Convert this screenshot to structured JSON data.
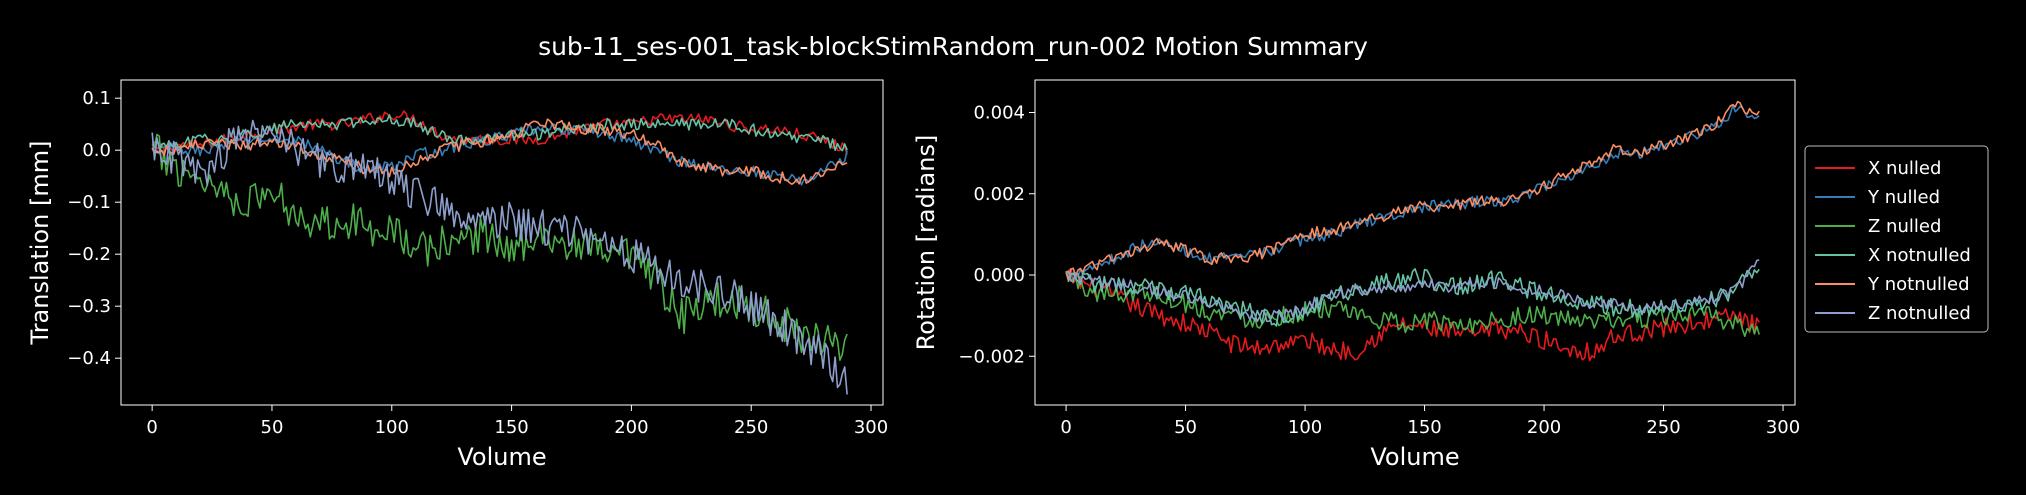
{
  "title": "sub-11_ses-001_task-blockStimRandom_run-002 Motion Summary",
  "legend": {
    "placement": "right, outside plots",
    "entries": [
      {
        "label": "X nulled",
        "color": "#e41a1c"
      },
      {
        "label": "Y nulled",
        "color": "#377eb8"
      },
      {
        "label": "Z nulled",
        "color": "#4daf4a"
      },
      {
        "label": "X notnulled",
        "color": "#66c2a5"
      },
      {
        "label": "Y notnulled",
        "color": "#fc8d62"
      },
      {
        "label": "Z notnulled",
        "color": "#8da0cb"
      }
    ]
  },
  "chart_data": [
    {
      "type": "line",
      "xlabel": "Volume",
      "ylabel": "Translation [mm]",
      "xlim": [
        -13,
        305
      ],
      "ylim": [
        -0.49,
        0.135
      ],
      "xticks": [
        0,
        50,
        100,
        150,
        200,
        250,
        300
      ],
      "yticks": [
        0.1,
        0.0,
        -0.1,
        -0.2,
        -0.3,
        -0.4
      ],
      "ytick_labels": [
        "0.1",
        "0.0",
        "−0.1",
        "−0.2",
        "−0.3",
        "−0.4"
      ],
      "grid": false,
      "x_range": [
        0,
        290
      ],
      "series": [
        {
          "name": "X nulled",
          "color": "#e41a1c",
          "x": [
            0,
            10,
            20,
            30,
            40,
            50,
            60,
            70,
            80,
            90,
            100,
            110,
            120,
            130,
            140,
            150,
            160,
            170,
            180,
            190,
            200,
            210,
            220,
            230,
            240,
            250,
            260,
            270,
            280,
            290
          ],
          "y": [
            0.0,
            0.01,
            0.01,
            0.02,
            0.03,
            0.04,
            0.045,
            0.05,
            0.05,
            0.06,
            0.07,
            0.06,
            0.03,
            0.02,
            0.02,
            0.02,
            0.02,
            0.03,
            0.04,
            0.05,
            0.05,
            0.06,
            0.06,
            0.06,
            0.05,
            0.04,
            0.04,
            0.03,
            0.02,
            0.0
          ]
        },
        {
          "name": "Y nulled",
          "color": "#377eb8",
          "x": [
            0,
            10,
            20,
            30,
            40,
            50,
            60,
            70,
            80,
            90,
            100,
            110,
            120,
            130,
            140,
            150,
            160,
            170,
            180,
            190,
            200,
            210,
            220,
            230,
            240,
            250,
            260,
            270,
            280,
            290
          ],
          "y": [
            0.01,
            0.0,
            0.0,
            0.01,
            0.02,
            0.02,
            0.02,
            0.0,
            -0.02,
            -0.04,
            -0.03,
            -0.01,
            0.0,
            0.01,
            0.02,
            0.03,
            0.04,
            0.04,
            0.04,
            0.03,
            0.02,
            0.0,
            -0.02,
            -0.03,
            -0.04,
            -0.04,
            -0.05,
            -0.06,
            -0.04,
            -0.01
          ]
        },
        {
          "name": "Z nulled",
          "color": "#4daf4a",
          "x": [
            0,
            10,
            20,
            30,
            40,
            50,
            60,
            70,
            80,
            90,
            100,
            110,
            120,
            130,
            140,
            150,
            160,
            170,
            180,
            190,
            200,
            210,
            220,
            230,
            240,
            250,
            260,
            270,
            280,
            290
          ],
          "y": [
            0.0,
            -0.03,
            -0.05,
            -0.08,
            -0.1,
            -0.08,
            -0.12,
            -0.14,
            -0.13,
            -0.15,
            -0.14,
            -0.2,
            -0.18,
            -0.17,
            -0.16,
            -0.2,
            -0.15,
            -0.18,
            -0.19,
            -0.2,
            -0.21,
            -0.25,
            -0.32,
            -0.3,
            -0.28,
            -0.3,
            -0.33,
            -0.35,
            -0.36,
            -0.37
          ]
        },
        {
          "name": "X notnulled",
          "color": "#66c2a5",
          "x": [
            0,
            10,
            20,
            30,
            40,
            50,
            60,
            70,
            80,
            90,
            100,
            110,
            120,
            130,
            140,
            150,
            160,
            170,
            180,
            190,
            200,
            210,
            220,
            230,
            240,
            250,
            260,
            270,
            280,
            290
          ],
          "y": [
            0.0,
            0.01,
            0.02,
            0.02,
            0.03,
            0.04,
            0.05,
            0.05,
            0.05,
            0.06,
            0.06,
            0.05,
            0.03,
            0.02,
            0.02,
            0.03,
            0.03,
            0.04,
            0.04,
            0.05,
            0.05,
            0.05,
            0.05,
            0.05,
            0.05,
            0.04,
            0.03,
            0.02,
            0.02,
            0.0
          ]
        },
        {
          "name": "Y notnulled",
          "color": "#fc8d62",
          "x": [
            0,
            10,
            20,
            30,
            40,
            50,
            60,
            70,
            80,
            90,
            100,
            110,
            120,
            130,
            140,
            150,
            160,
            170,
            180,
            190,
            200,
            210,
            220,
            230,
            240,
            250,
            260,
            270,
            280,
            290
          ],
          "y": [
            0.0,
            0.0,
            0.01,
            0.01,
            0.01,
            0.02,
            0.01,
            -0.01,
            -0.02,
            -0.04,
            -0.04,
            -0.02,
            0.0,
            0.01,
            0.02,
            0.03,
            0.05,
            0.05,
            0.04,
            0.04,
            0.03,
            0.01,
            -0.02,
            -0.03,
            -0.04,
            -0.04,
            -0.05,
            -0.06,
            -0.05,
            -0.02
          ]
        },
        {
          "name": "Z notnulled",
          "color": "#8da0cb",
          "x": [
            0,
            10,
            20,
            30,
            40,
            50,
            60,
            70,
            80,
            90,
            100,
            110,
            120,
            130,
            140,
            150,
            160,
            170,
            180,
            190,
            200,
            210,
            220,
            230,
            240,
            250,
            260,
            270,
            280,
            290
          ],
          "y": [
            0.02,
            -0.02,
            -0.05,
            0.0,
            0.02,
            0.05,
            0.0,
            -0.02,
            -0.03,
            -0.04,
            -0.06,
            -0.08,
            -0.1,
            -0.12,
            -0.14,
            -0.13,
            -0.15,
            -0.15,
            -0.16,
            -0.18,
            -0.2,
            -0.22,
            -0.25,
            -0.27,
            -0.28,
            -0.3,
            -0.33,
            -0.36,
            -0.4,
            -0.44
          ]
        }
      ]
    },
    {
      "type": "line",
      "xlabel": "Volume",
      "ylabel": "Rotation [radians]",
      "xlim": [
        -13,
        305
      ],
      "ylim": [
        -0.0032,
        0.0048
      ],
      "xticks": [
        0,
        50,
        100,
        150,
        200,
        250,
        300
      ],
      "yticks": [
        0.004,
        0.002,
        0.0,
        -0.002
      ],
      "ytick_labels": [
        "0.004",
        "0.002",
        "0.000",
        "−0.002"
      ],
      "grid": false,
      "x_range": [
        0,
        290
      ],
      "series": [
        {
          "name": "X nulled",
          "color": "#e41a1c",
          "x": [
            0,
            10,
            20,
            30,
            40,
            50,
            60,
            70,
            80,
            90,
            100,
            110,
            120,
            130,
            140,
            150,
            160,
            170,
            180,
            190,
            200,
            210,
            220,
            230,
            240,
            250,
            260,
            270,
            280,
            290
          ],
          "y": [
            0.0,
            -0.0003,
            -0.0005,
            -0.0008,
            -0.001,
            -0.0012,
            -0.0014,
            -0.0017,
            -0.0018,
            -0.0017,
            -0.0016,
            -0.0018,
            -0.0019,
            -0.0015,
            -0.0012,
            -0.0013,
            -0.0014,
            -0.0015,
            -0.0013,
            -0.0014,
            -0.0016,
            -0.0018,
            -0.0019,
            -0.0015,
            -0.0014,
            -0.0013,
            -0.0012,
            -0.0011,
            -0.001,
            -0.0013
          ]
        },
        {
          "name": "Y nulled",
          "color": "#377eb8",
          "x": [
            0,
            10,
            20,
            30,
            40,
            50,
            60,
            70,
            80,
            90,
            100,
            110,
            120,
            130,
            140,
            150,
            160,
            170,
            180,
            190,
            200,
            210,
            220,
            230,
            240,
            250,
            260,
            270,
            280,
            290
          ],
          "y": [
            0.0,
            0.0002,
            0.0004,
            0.0007,
            0.0008,
            0.0006,
            0.0004,
            0.0004,
            0.0005,
            0.0007,
            0.0009,
            0.001,
            0.0012,
            0.0014,
            0.0015,
            0.0017,
            0.0017,
            0.0018,
            0.0018,
            0.0019,
            0.0022,
            0.0024,
            0.0027,
            0.003,
            0.003,
            0.0032,
            0.0034,
            0.0036,
            0.0041,
            0.0039
          ]
        },
        {
          "name": "Z nulled",
          "color": "#4daf4a",
          "x": [
            0,
            10,
            20,
            30,
            40,
            50,
            60,
            70,
            80,
            90,
            100,
            110,
            120,
            130,
            140,
            150,
            160,
            170,
            180,
            190,
            200,
            210,
            220,
            230,
            240,
            250,
            260,
            270,
            280,
            290
          ],
          "y": [
            0.0,
            -0.0004,
            -0.0005,
            -0.0004,
            -0.0005,
            -0.0007,
            -0.0009,
            -0.001,
            -0.0011,
            -0.001,
            -0.0009,
            -0.0008,
            -0.001,
            -0.0011,
            -0.0012,
            -0.0011,
            -0.0012,
            -0.0012,
            -0.0011,
            -0.001,
            -0.001,
            -0.0011,
            -0.0012,
            -0.0011,
            -0.0011,
            -0.001,
            -0.001,
            -0.001,
            -0.0012,
            -0.0014
          ]
        },
        {
          "name": "X notnulled",
          "color": "#66c2a5",
          "x": [
            0,
            10,
            20,
            30,
            40,
            50,
            60,
            70,
            80,
            90,
            100,
            110,
            120,
            130,
            140,
            150,
            160,
            170,
            180,
            190,
            200,
            210,
            220,
            230,
            240,
            250,
            260,
            270,
            280,
            290
          ],
          "y": [
            0.0,
            -0.0002,
            -0.0003,
            -0.0003,
            -0.0004,
            -0.0005,
            -0.0006,
            -0.0008,
            -0.001,
            -0.0011,
            -0.0009,
            -0.0006,
            -0.0004,
            -0.0002,
            -0.0002,
            0.0,
            -0.0003,
            -0.0002,
            -0.0001,
            -0.0003,
            -0.0004,
            -0.0006,
            -0.0007,
            -0.0008,
            -0.0008,
            -0.0008,
            -0.0007,
            -0.0006,
            -0.0004,
            0.0003
          ]
        },
        {
          "name": "Y notnulled",
          "color": "#fc8d62",
          "x": [
            0,
            10,
            20,
            30,
            40,
            50,
            60,
            70,
            80,
            90,
            100,
            110,
            120,
            130,
            140,
            150,
            160,
            170,
            180,
            190,
            200,
            210,
            220,
            230,
            240,
            250,
            260,
            270,
            280,
            290
          ],
          "y": [
            0.0,
            0.0002,
            0.0004,
            0.0006,
            0.0008,
            0.0006,
            0.0004,
            0.0004,
            0.0005,
            0.0007,
            0.001,
            0.0011,
            0.0012,
            0.0014,
            0.0016,
            0.0017,
            0.0017,
            0.0018,
            0.0018,
            0.0019,
            0.0022,
            0.0025,
            0.0028,
            0.0031,
            0.003,
            0.0032,
            0.0034,
            0.0036,
            0.0042,
            0.0039
          ]
        },
        {
          "name": "Z notnulled",
          "color": "#8da0cb",
          "x": [
            0,
            10,
            20,
            30,
            40,
            50,
            60,
            70,
            80,
            90,
            100,
            110,
            120,
            130,
            140,
            150,
            160,
            170,
            180,
            190,
            200,
            210,
            220,
            230,
            240,
            250,
            260,
            270,
            280,
            290
          ],
          "y": [
            0.0,
            -0.0001,
            -0.0002,
            -0.0003,
            -0.0004,
            -0.0005,
            -0.0007,
            -0.0009,
            -0.001,
            -0.001,
            -0.0008,
            -0.0005,
            -0.0004,
            -0.0003,
            -0.0003,
            -0.0002,
            -0.0003,
            -0.0002,
            -0.0002,
            -0.0003,
            -0.0004,
            -0.0005,
            -0.0007,
            -0.0007,
            -0.0008,
            -0.0008,
            -0.0007,
            -0.0006,
            -0.0004,
            0.0003
          ]
        }
      ]
    }
  ]
}
